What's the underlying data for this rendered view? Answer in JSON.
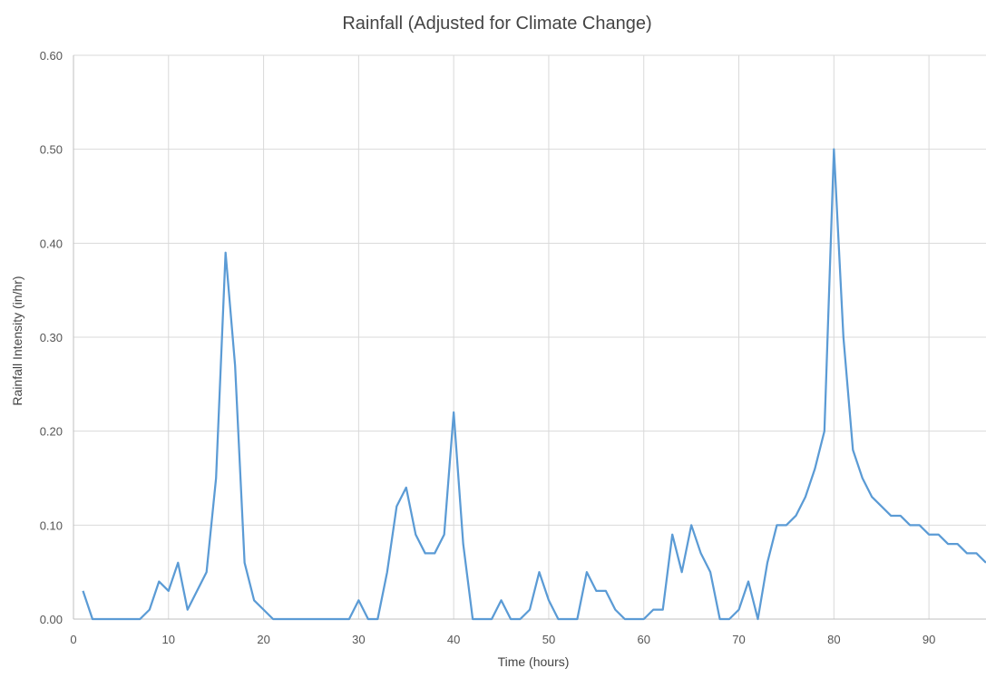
{
  "chart_data": {
    "type": "line",
    "title": "Rainfall (Adjusted for Climate Change)",
    "xlabel": "Time (hours)",
    "ylabel": "Rainfall Intensity (in/hr)",
    "xlim": [
      0,
      96
    ],
    "ylim": [
      0,
      0.6
    ],
    "x_ticks": [
      "0",
      "10",
      "20",
      "30",
      "40",
      "50",
      "60",
      "70",
      "80",
      "90"
    ],
    "y_ticks": [
      "0.00",
      "0.10",
      "0.20",
      "0.30",
      "0.40",
      "0.50",
      "0.60"
    ],
    "grid": "vertical and horizontal",
    "legend": "none",
    "color": "#5b9bd5",
    "series": [
      {
        "x": [
          1,
          2,
          3,
          4,
          5,
          6,
          7,
          8,
          9,
          10,
          11,
          12,
          13,
          14,
          15,
          16,
          17,
          18,
          19,
          20,
          21,
          22,
          23,
          24,
          25,
          26,
          27,
          28,
          29,
          30,
          31,
          32,
          33,
          34,
          35,
          36,
          37,
          38,
          39,
          40,
          41,
          42,
          43,
          44,
          45,
          46,
          47,
          48,
          49,
          50,
          51,
          52,
          53,
          54,
          55,
          56,
          57,
          58,
          59,
          60,
          61,
          62,
          63,
          64,
          65,
          66,
          67,
          68,
          69,
          70,
          71,
          72,
          73,
          74,
          75,
          76,
          77,
          78,
          79,
          80,
          81,
          82,
          83,
          84,
          85,
          86,
          87,
          88,
          89,
          90,
          91,
          92,
          93,
          94,
          95,
          96
        ],
        "values": [
          0.03,
          0,
          0,
          0,
          0,
          0,
          0,
          0.01,
          0.04,
          0.03,
          0.06,
          0.01,
          0.03,
          0.05,
          0.15,
          0.39,
          0.27,
          0.06,
          0.02,
          0.01,
          0,
          0,
          0,
          0,
          0,
          0,
          0,
          0,
          0,
          0.02,
          0,
          0,
          0.05,
          0.12,
          0.14,
          0.09,
          0.07,
          0.07,
          0.09,
          0.22,
          0.08,
          0,
          0,
          0,
          0.02,
          0,
          0,
          0.01,
          0.05,
          0.02,
          0,
          0,
          0,
          0.05,
          0.03,
          0.03,
          0.01,
          0,
          0,
          0,
          0.01,
          0.01,
          0.09,
          0.05,
          0.1,
          0.07,
          0.05,
          0,
          0,
          0.01,
          0.04,
          0,
          0.06,
          0.1,
          0.1,
          0.11,
          0.13,
          0.16,
          0.2,
          0.5,
          0.3,
          0.18,
          0.15,
          0.13,
          0.12,
          0.11,
          0.11,
          0.1,
          0.1,
          0.09,
          0.09,
          0.08,
          0.08,
          0.07,
          0.07,
          0.06
        ]
      }
    ]
  }
}
